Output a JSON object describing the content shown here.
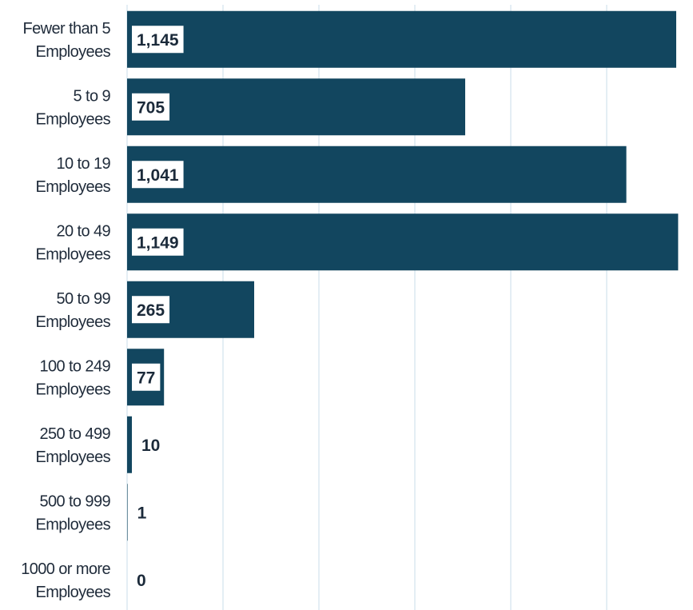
{
  "chart_data": {
    "type": "bar",
    "orientation": "horizontal",
    "title": "",
    "xlabel": "",
    "ylabel": "",
    "categories": [
      [
        "Fewer than 5",
        "Employees"
      ],
      [
        "5 to 9",
        "Employees"
      ],
      [
        "10 to 19",
        "Employees"
      ],
      [
        "20 to 49",
        "Employees"
      ],
      [
        "50 to 99",
        "Employees"
      ],
      [
        "100 to 249",
        "Employees"
      ],
      [
        "250 to 499",
        "Employees"
      ],
      [
        "500 to 999",
        "Employees"
      ],
      [
        "1000 or more",
        "Employees"
      ]
    ],
    "values": [
      1145,
      705,
      1041,
      1149,
      265,
      77,
      10,
      1,
      0
    ],
    "value_labels": [
      "1,145",
      "705",
      "1,041",
      "1,149",
      "265",
      "77",
      "10",
      "1",
      "0"
    ],
    "xlim": [
      0,
      1150
    ],
    "grid": true,
    "legend": "none",
    "colors": {
      "bar": "#12465f",
      "grid": "#c9dce8",
      "label_box": "#ffffff",
      "text": "#1b2a3a"
    }
  }
}
